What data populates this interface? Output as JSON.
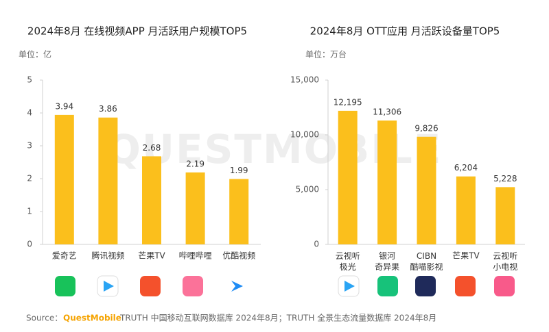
{
  "chart_data": [
    {
      "type": "bar",
      "title": "2024年8月 在线视频APP 月活跃用户规模TOP5",
      "unit": "单位：亿",
      "categories": [
        "爱奇艺",
        "腾讯视频",
        "芒果TV",
        "哔哩哔哩",
        "优酷视频"
      ],
      "values": [
        3.94,
        3.86,
        2.68,
        2.19,
        1.99
      ],
      "color": "#fbbf1c",
      "ylim": [
        0,
        5
      ],
      "yticks": [
        0,
        1,
        2,
        3,
        4,
        5
      ],
      "grid": false
    },
    {
      "type": "bar",
      "title": "2024年8月 OTT应用 月活跃设备量TOP5",
      "unit": "单位：万台",
      "categories": [
        "云视听\n极光",
        "银河\n奇异果",
        "CIBN\n酷喵影视",
        "芒果TV",
        "云视听\n小电视"
      ],
      "values": [
        12195,
        11306,
        9826,
        6204,
        5228
      ],
      "value_labels": [
        "12,195",
        "11,306",
        "9,826",
        "6,204",
        "5,228"
      ],
      "color": "#fbbf1c",
      "ylim": [
        0,
        15000
      ],
      "yticks": [
        0,
        {
          "value": 5000,
          "label": "5,000"
        },
        {
          "value": 10000,
          "label": "10,000"
        },
        {
          "value": 15000,
          "label": "15,000"
        }
      ],
      "grid": false
    }
  ],
  "watermark": "QUESTMOBILE",
  "source": {
    "prefix": "Source：",
    "brand": "QuestMobile",
    "text": "TRUTH 中国移动互联网数据库 2024年8月；TRUTH 全景生态流量数据库 2024年8月"
  }
}
